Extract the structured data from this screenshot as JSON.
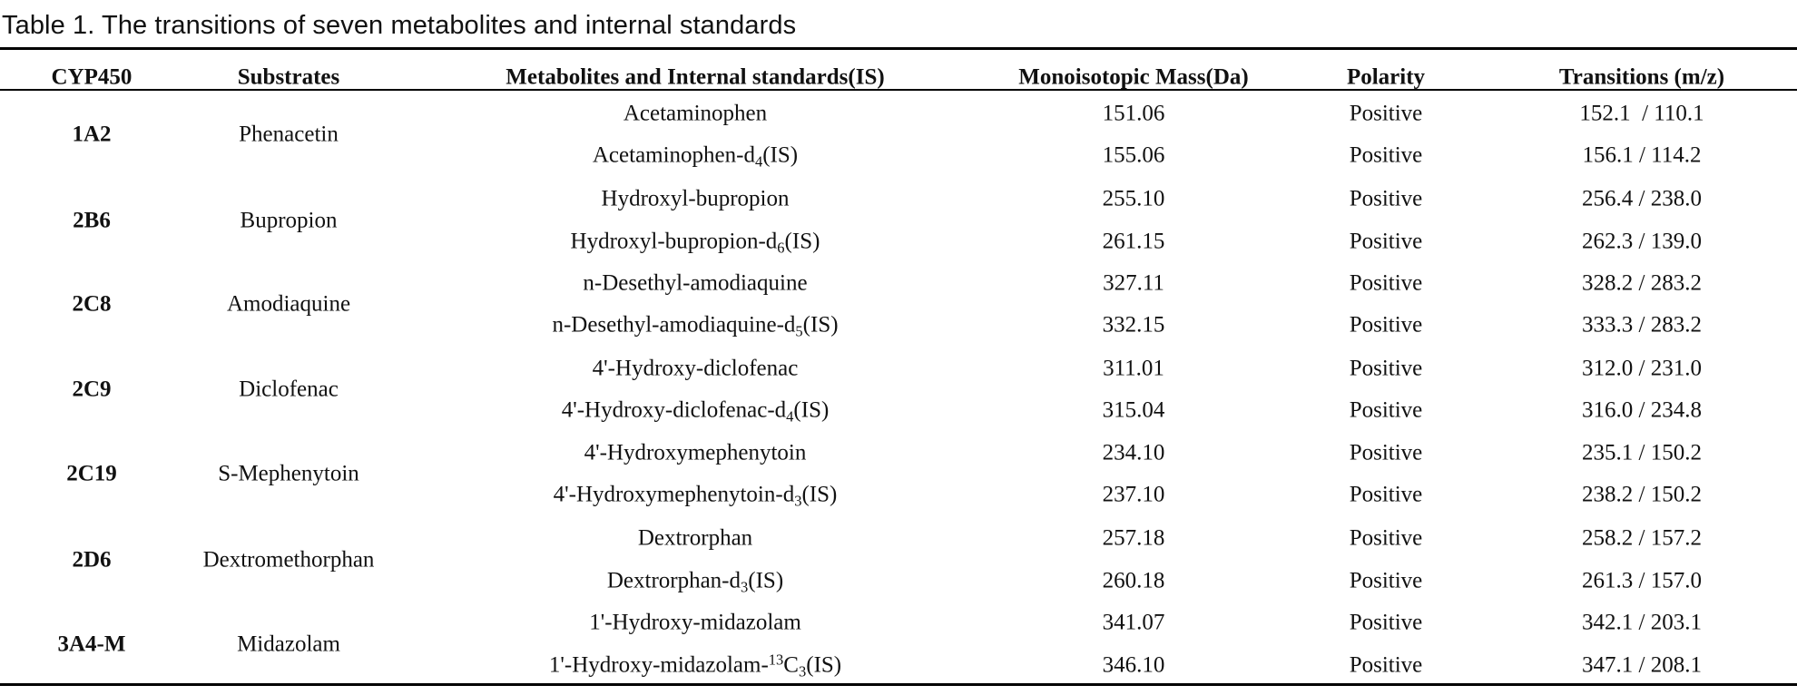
{
  "caption": "Table 1. The transitions of seven metabolites and internal standards",
  "headers": {
    "cyp": "CYP450",
    "substrates": "Substrates",
    "metabolites": "Metabolites and Internal standards(IS)",
    "mass": "Monoisotopic Mass(Da)",
    "polarity": "Polarity",
    "transitions": "Transitions (m/z)"
  },
  "groups": [
    {
      "cyp": "1A2",
      "substrate": "Phenacetin"
    },
    {
      "cyp": "2B6",
      "substrate": "Bupropion"
    },
    {
      "cyp": "2C8",
      "substrate": "Amodiaquine"
    },
    {
      "cyp": "2C9",
      "substrate": "Diclofenac"
    },
    {
      "cyp": "2C19",
      "substrate": "S-Mephenytoin"
    },
    {
      "cyp": "2D6",
      "substrate": "Dextromethorphan"
    },
    {
      "cyp": "3A4-M",
      "substrate": "Midazolam"
    }
  ],
  "rows": [
    {
      "pre": "Acetaminophen",
      "mark": "",
      "post": "",
      "mass": "151.06",
      "polarity": "Positive",
      "transition": "152.1  / 110.1"
    },
    {
      "pre": "Acetaminophen-d",
      "mark": "4",
      "post": "(IS)",
      "mass": "155.06",
      "polarity": "Positive",
      "transition": "156.1 / 114.2"
    },
    {
      "pre": "Hydroxyl-bupropion",
      "mark": "",
      "post": "",
      "mass": "255.10",
      "polarity": "Positive",
      "transition": "256.4 / 238.0"
    },
    {
      "pre": "Hydroxyl-bupropion-d",
      "mark": "6",
      "post": "(IS)",
      "mass": "261.15",
      "polarity": "Positive",
      "transition": "262.3 / 139.0"
    },
    {
      "pre": "n-Desethyl-amodiaquine",
      "mark": "",
      "post": "",
      "mass": "327.11",
      "polarity": "Positive",
      "transition": "328.2 / 283.2"
    },
    {
      "pre": "n-Desethyl-amodiaquine-d",
      "mark": "5",
      "post": "(IS)",
      "mass": "332.15",
      "polarity": "Positive",
      "transition": "333.3 / 283.2"
    },
    {
      "pre": "4'-Hydroxy-diclofenac",
      "mark": "",
      "post": "",
      "mass": "311.01",
      "polarity": "Positive",
      "transition": "312.0 / 231.0"
    },
    {
      "pre": "4'-Hydroxy-diclofenac-d",
      "mark": "4",
      "post": "(IS)",
      "mass": "315.04",
      "polarity": "Positive",
      "transition": "316.0 / 234.8"
    },
    {
      "pre": "4'-Hydroxymephenytoin",
      "mark": "",
      "post": "",
      "mass": "234.10",
      "polarity": "Positive",
      "transition": "235.1 / 150.2"
    },
    {
      "pre": "4'-Hydroxymephenytoin-d",
      "mark": "3",
      "post": "(IS)",
      "mass": "237.10",
      "polarity": "Positive",
      "transition": "238.2 / 150.2"
    },
    {
      "pre": "Dextrorphan",
      "mark": "",
      "post": "",
      "mass": "257.18",
      "polarity": "Positive",
      "transition": "258.2 / 157.2"
    },
    {
      "pre": "Dextrorphan-d",
      "mark": "3",
      "post": "(IS)",
      "mass": "260.18",
      "polarity": "Positive",
      "transition": "261.3 / 157.0"
    },
    {
      "pre": "1'-Hydroxy-midazolam",
      "mark": "",
      "post": "",
      "mass": "341.07",
      "polarity": "Positive",
      "transition": "342.1 / 203.1"
    },
    {
      "pre": "1'-Hydroxy-midazolam-",
      "sup": "13",
      "after": "C",
      "mark": "3",
      "post": "(IS)",
      "mass": "346.10",
      "polarity": "Positive",
      "transition": "347.1 / 208.1"
    }
  ]
}
